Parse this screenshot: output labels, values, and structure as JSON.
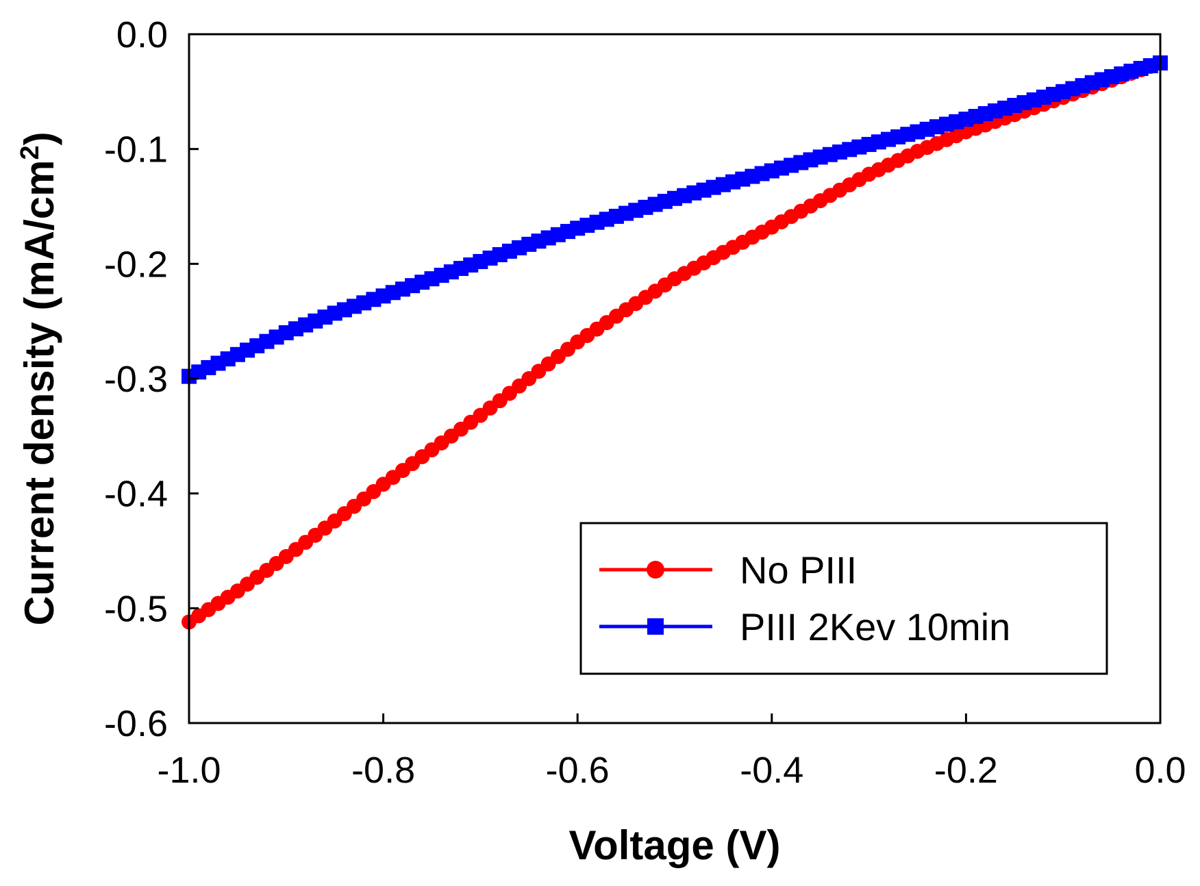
{
  "chart_data": {
    "type": "line",
    "title": "",
    "xlabel": "Voltage (V)",
    "ylabel": "Current density (mA/cm",
    "ylabel_sup": "2",
    "ylabel_close": ")",
    "xlim": [
      -1.0,
      0.0
    ],
    "ylim": [
      -0.6,
      0.0
    ],
    "x_ticks": [
      -1.0,
      -0.8,
      -0.6,
      -0.4,
      -0.2,
      0.0
    ],
    "x_tick_labels": [
      "-1.0",
      "-0.8",
      "-0.6",
      "-0.4",
      "-0.2",
      "0.0"
    ],
    "y_ticks": [
      0.0,
      -0.1,
      -0.2,
      -0.3,
      -0.4,
      -0.5,
      -0.6
    ],
    "y_tick_labels": [
      "0.0",
      "-0.1",
      "-0.2",
      "-0.3",
      "-0.4",
      "-0.5",
      "-0.6"
    ],
    "grid": false,
    "legend_position": "bottom-right",
    "series": [
      {
        "name": "No PIII",
        "color": "#ff0000",
        "marker": "circle",
        "x": [
          -1.0,
          -0.95,
          -0.9,
          -0.85,
          -0.8,
          -0.75,
          -0.7,
          -0.65,
          -0.6,
          -0.55,
          -0.5,
          -0.45,
          -0.4,
          -0.35,
          -0.3,
          -0.25,
          -0.2,
          -0.15,
          -0.1,
          -0.05,
          0.0
        ],
        "values": [
          -0.512,
          -0.485,
          -0.455,
          -0.424,
          -0.392,
          -0.362,
          -0.332,
          -0.3,
          -0.268,
          -0.24,
          -0.213,
          -0.19,
          -0.168,
          -0.145,
          -0.122,
          -0.102,
          -0.085,
          -0.07,
          -0.055,
          -0.04,
          -0.025
        ]
      },
      {
        "name": "PIII 2Kev 10min",
        "color": "#0000ff",
        "marker": "square",
        "x": [
          -1.0,
          -0.95,
          -0.9,
          -0.85,
          -0.8,
          -0.75,
          -0.7,
          -0.65,
          -0.6,
          -0.55,
          -0.5,
          -0.45,
          -0.4,
          -0.35,
          -0.3,
          -0.25,
          -0.2,
          -0.15,
          -0.1,
          -0.05,
          0.0
        ],
        "values": [
          -0.298,
          -0.279,
          -0.26,
          -0.243,
          -0.228,
          -0.213,
          -0.198,
          -0.183,
          -0.169,
          -0.156,
          -0.143,
          -0.131,
          -0.119,
          -0.107,
          -0.096,
          -0.085,
          -0.074,
          -0.062,
          -0.05,
          -0.037,
          -0.025
        ]
      }
    ]
  }
}
